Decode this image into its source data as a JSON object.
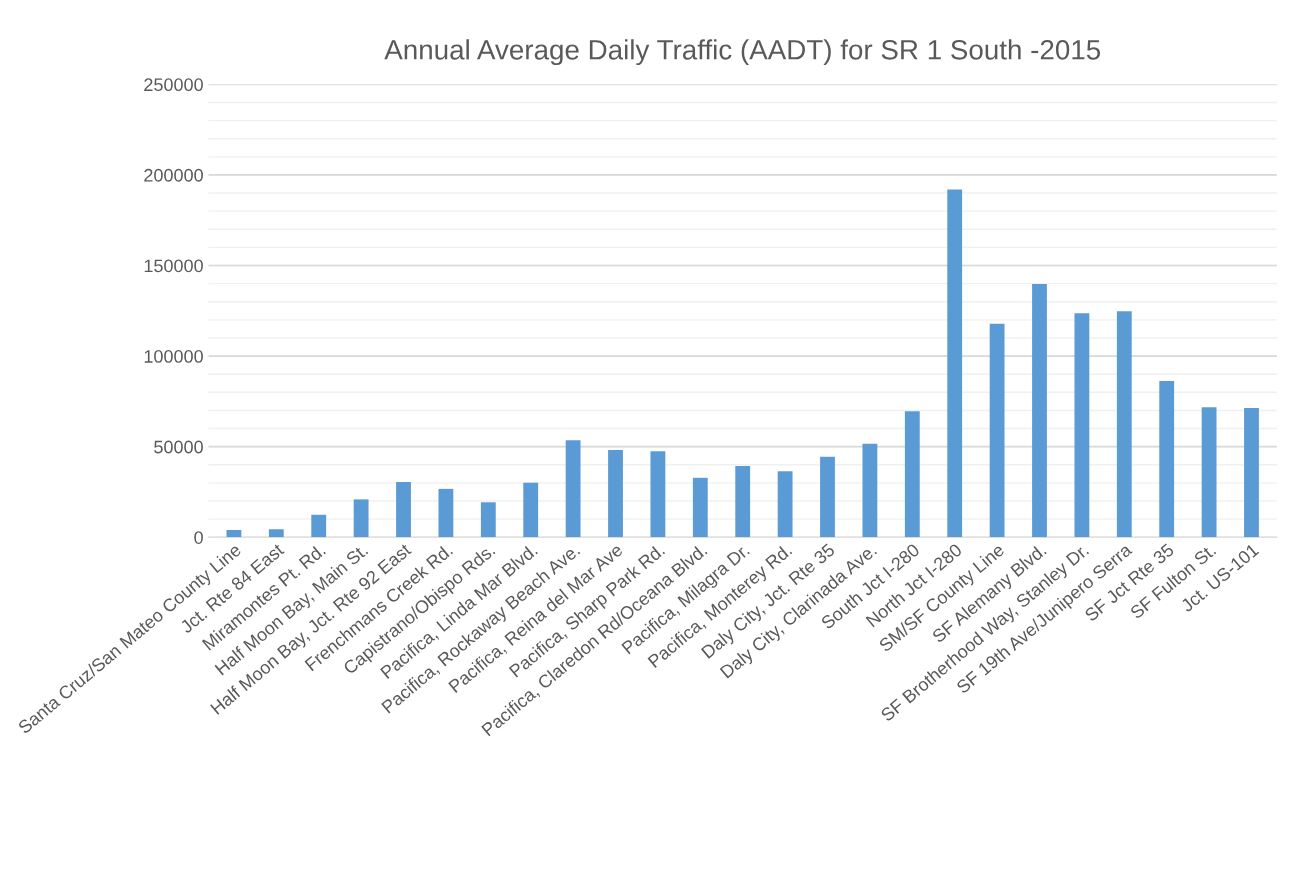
{
  "chart_data": {
    "type": "bar",
    "title": "Annual Average Daily Traffic (AADT) for SR 1 South -2015",
    "categories": [
      "Santa Cruz/San Mateo County Line",
      "Jct. Rte 84 East",
      "Miramontes Pt. Rd.",
      "Half Moon Bay, Main St.",
      "Half Moon Bay, Jct. Rte 92 East",
      "Frenchmans Creek Rd.",
      "Capistrano/Obispo Rds.",
      "Pacifica, Linda Mar Blvd.",
      "Pacifica, Rockaway Beach Ave.",
      "Pacifica, Reina del Mar Ave",
      "Pacifica, Sharp Park Rd.",
      "Pacifica, Claredon Rd/Oceana Blvd.",
      "Pacifica, Milagra Dr.",
      "Pacifica, Monterey Rd.",
      "Daly City, Jct. Rte 35",
      "Daly City, Clarinada Ave.",
      "South Jct I-280",
      "North Jct I-280",
      "SM/SF County Line",
      "SF Alemany Blvd.",
      "SF Brotherhood Way, Stanley Dr.",
      "SF 19th Ave/Junipero Serra",
      "SF Jct Rte 35",
      "SF Fulton St.",
      "Jct. US-101"
    ],
    "values": [
      4000,
      4400,
      12400,
      20900,
      30500,
      26700,
      19300,
      30100,
      53600,
      48200,
      47400,
      32800,
      39300,
      36400,
      44400,
      51600,
      69600,
      192000,
      117800,
      139800,
      123600,
      124700,
      86200,
      71800,
      71300
    ],
    "color": "#5b9bd5",
    "ylim": [
      0,
      250000
    ],
    "yticks": [
      0,
      50000,
      100000,
      150000,
      200000,
      250000
    ],
    "grid": "y",
    "legend": false
  }
}
